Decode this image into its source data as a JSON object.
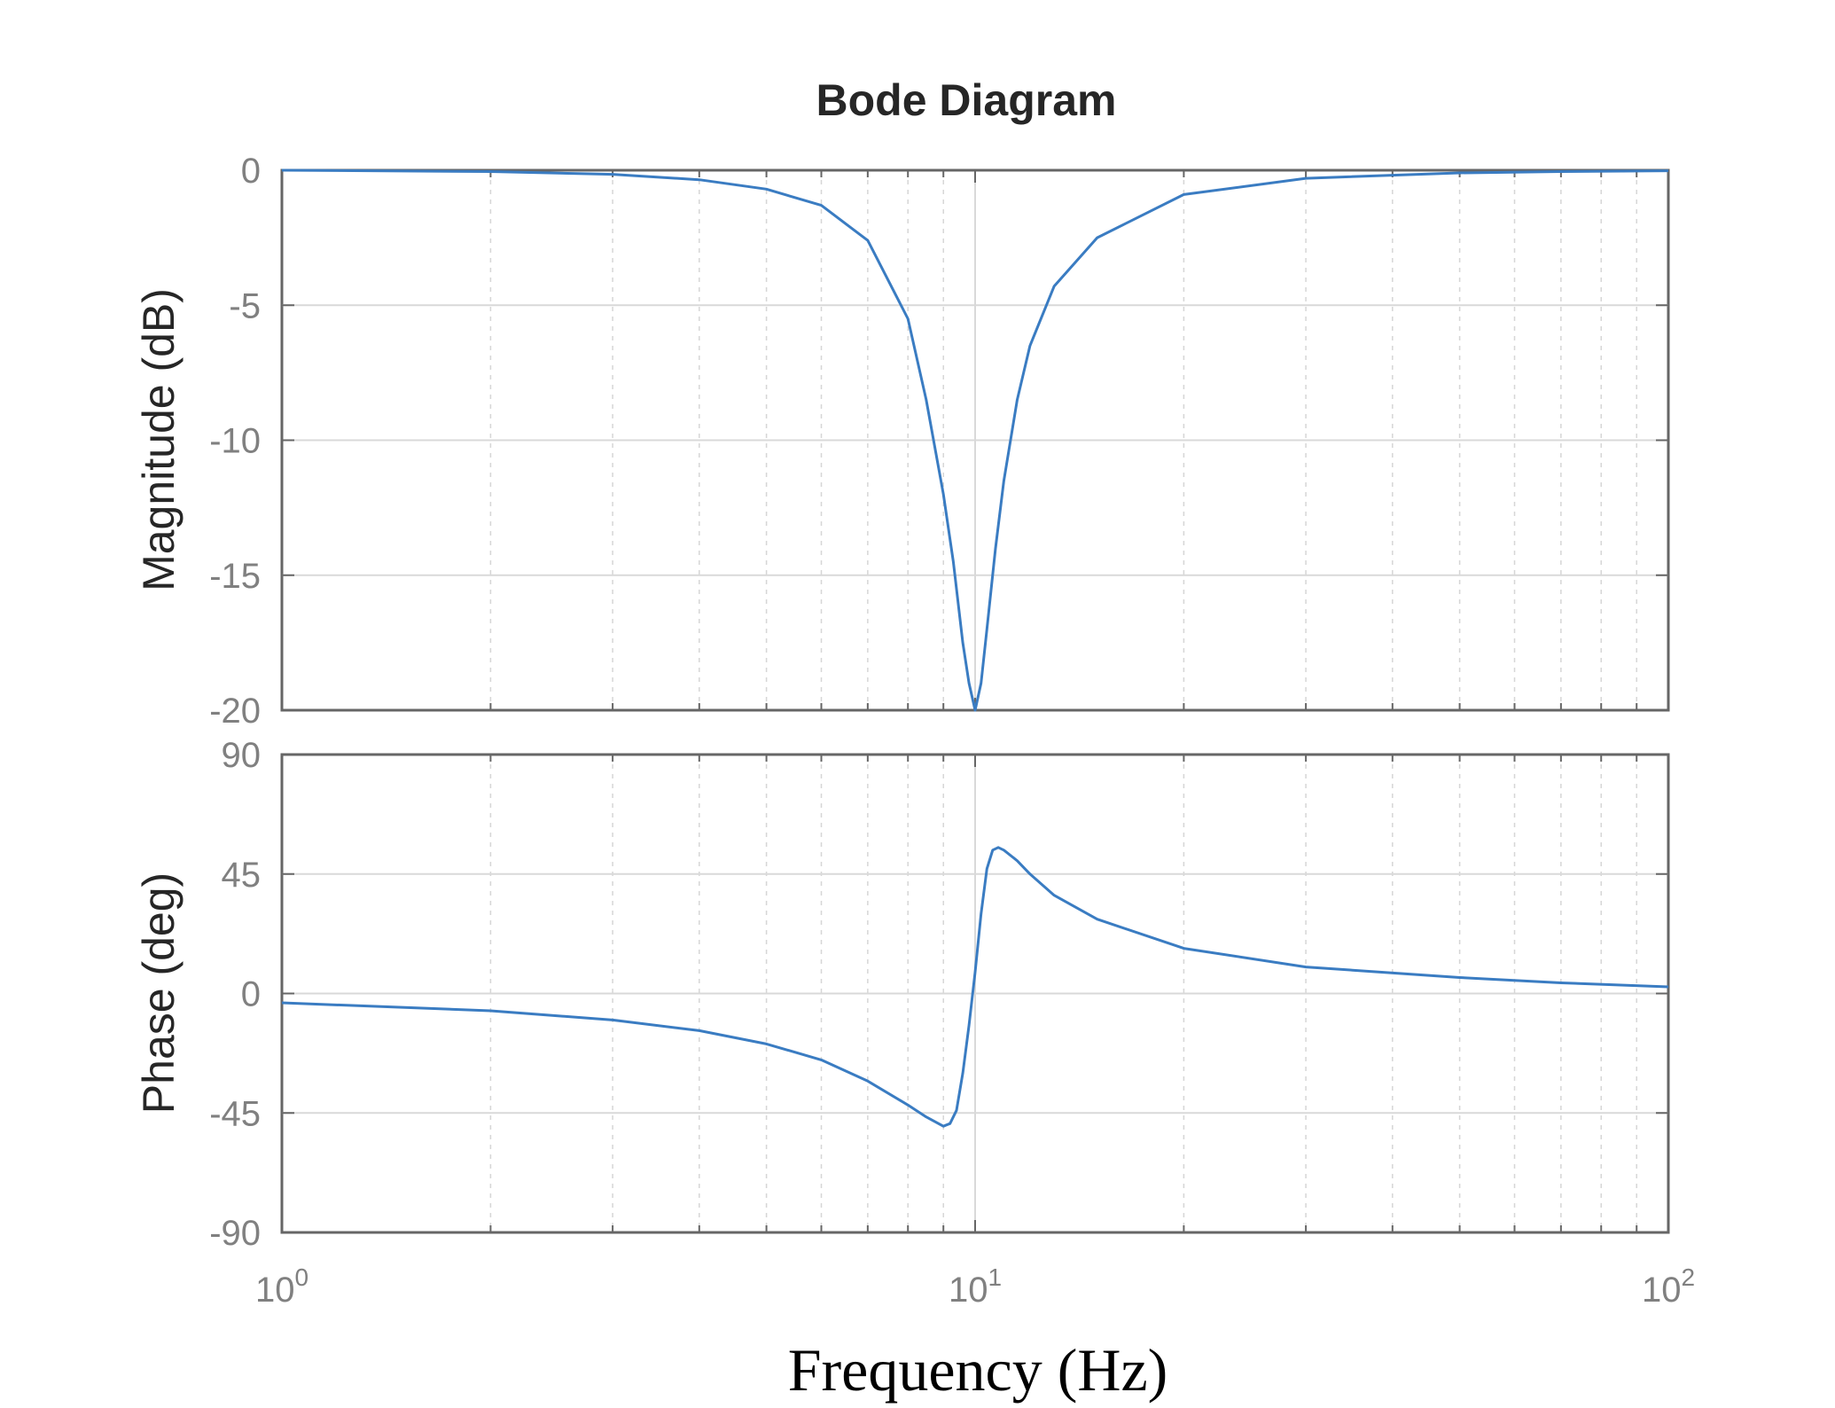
{
  "chart_data": [
    {
      "type": "line",
      "panel": "magnitude",
      "title": "Bode Diagram",
      "ylabel": "Magnitude (dB)",
      "xlabel": "",
      "xscale": "log",
      "xlim": [
        1,
        100
      ],
      "ylim": [
        -20,
        0
      ],
      "yticks": [
        0,
        -5,
        -10,
        -15,
        -20
      ],
      "grid": true,
      "series": [
        {
          "color": "#3a7cc2",
          "x": [
            1,
            2,
            3,
            4,
            5,
            6,
            7,
            8,
            8.5,
            9,
            9.3,
            9.6,
            9.8,
            10,
            10.2,
            10.4,
            10.7,
            11,
            11.5,
            12,
            13,
            15,
            20,
            30,
            50,
            70,
            100
          ],
          "y": [
            0,
            -0.05,
            -0.15,
            -0.35,
            -0.7,
            -1.3,
            -2.6,
            -5.5,
            -8.5,
            -12,
            -14.5,
            -17.5,
            -19,
            -20,
            -19,
            -17,
            -14,
            -11.5,
            -8.5,
            -6.5,
            -4.3,
            -2.5,
            -0.9,
            -0.3,
            -0.1,
            -0.05,
            -0.02
          ]
        }
      ]
    },
    {
      "type": "line",
      "panel": "phase",
      "ylabel": "Phase (deg)",
      "xlabel": "Frequency (Hz)",
      "xscale": "log",
      "xlim": [
        1,
        100
      ],
      "ylim": [
        -90,
        90
      ],
      "yticks": [
        90,
        45,
        0,
        -45,
        -90
      ],
      "xticks": [
        {
          "value": 1,
          "base": "10",
          "exp": "0"
        },
        {
          "value": 10,
          "base": "10",
          "exp": "1"
        },
        {
          "value": 100,
          "base": "10",
          "exp": "2"
        }
      ],
      "grid": true,
      "series": [
        {
          "color": "#3a7cc2",
          "x": [
            1,
            2,
            3,
            4,
            5,
            6,
            7,
            8,
            8.5,
            9,
            9.2,
            9.4,
            9.6,
            9.8,
            10,
            10.2,
            10.4,
            10.6,
            10.8,
            11,
            11.5,
            12,
            13,
            15,
            20,
            30,
            50,
            70,
            100
          ],
          "y": [
            -3.5,
            -6.5,
            -10,
            -14,
            -19,
            -25,
            -33,
            -42,
            -46.5,
            -50,
            -49,
            -44,
            -30,
            -12,
            8,
            30,
            47,
            54,
            55,
            54,
            50,
            45,
            37,
            28,
            17,
            10,
            6,
            4,
            2.5
          ]
        }
      ]
    }
  ]
}
